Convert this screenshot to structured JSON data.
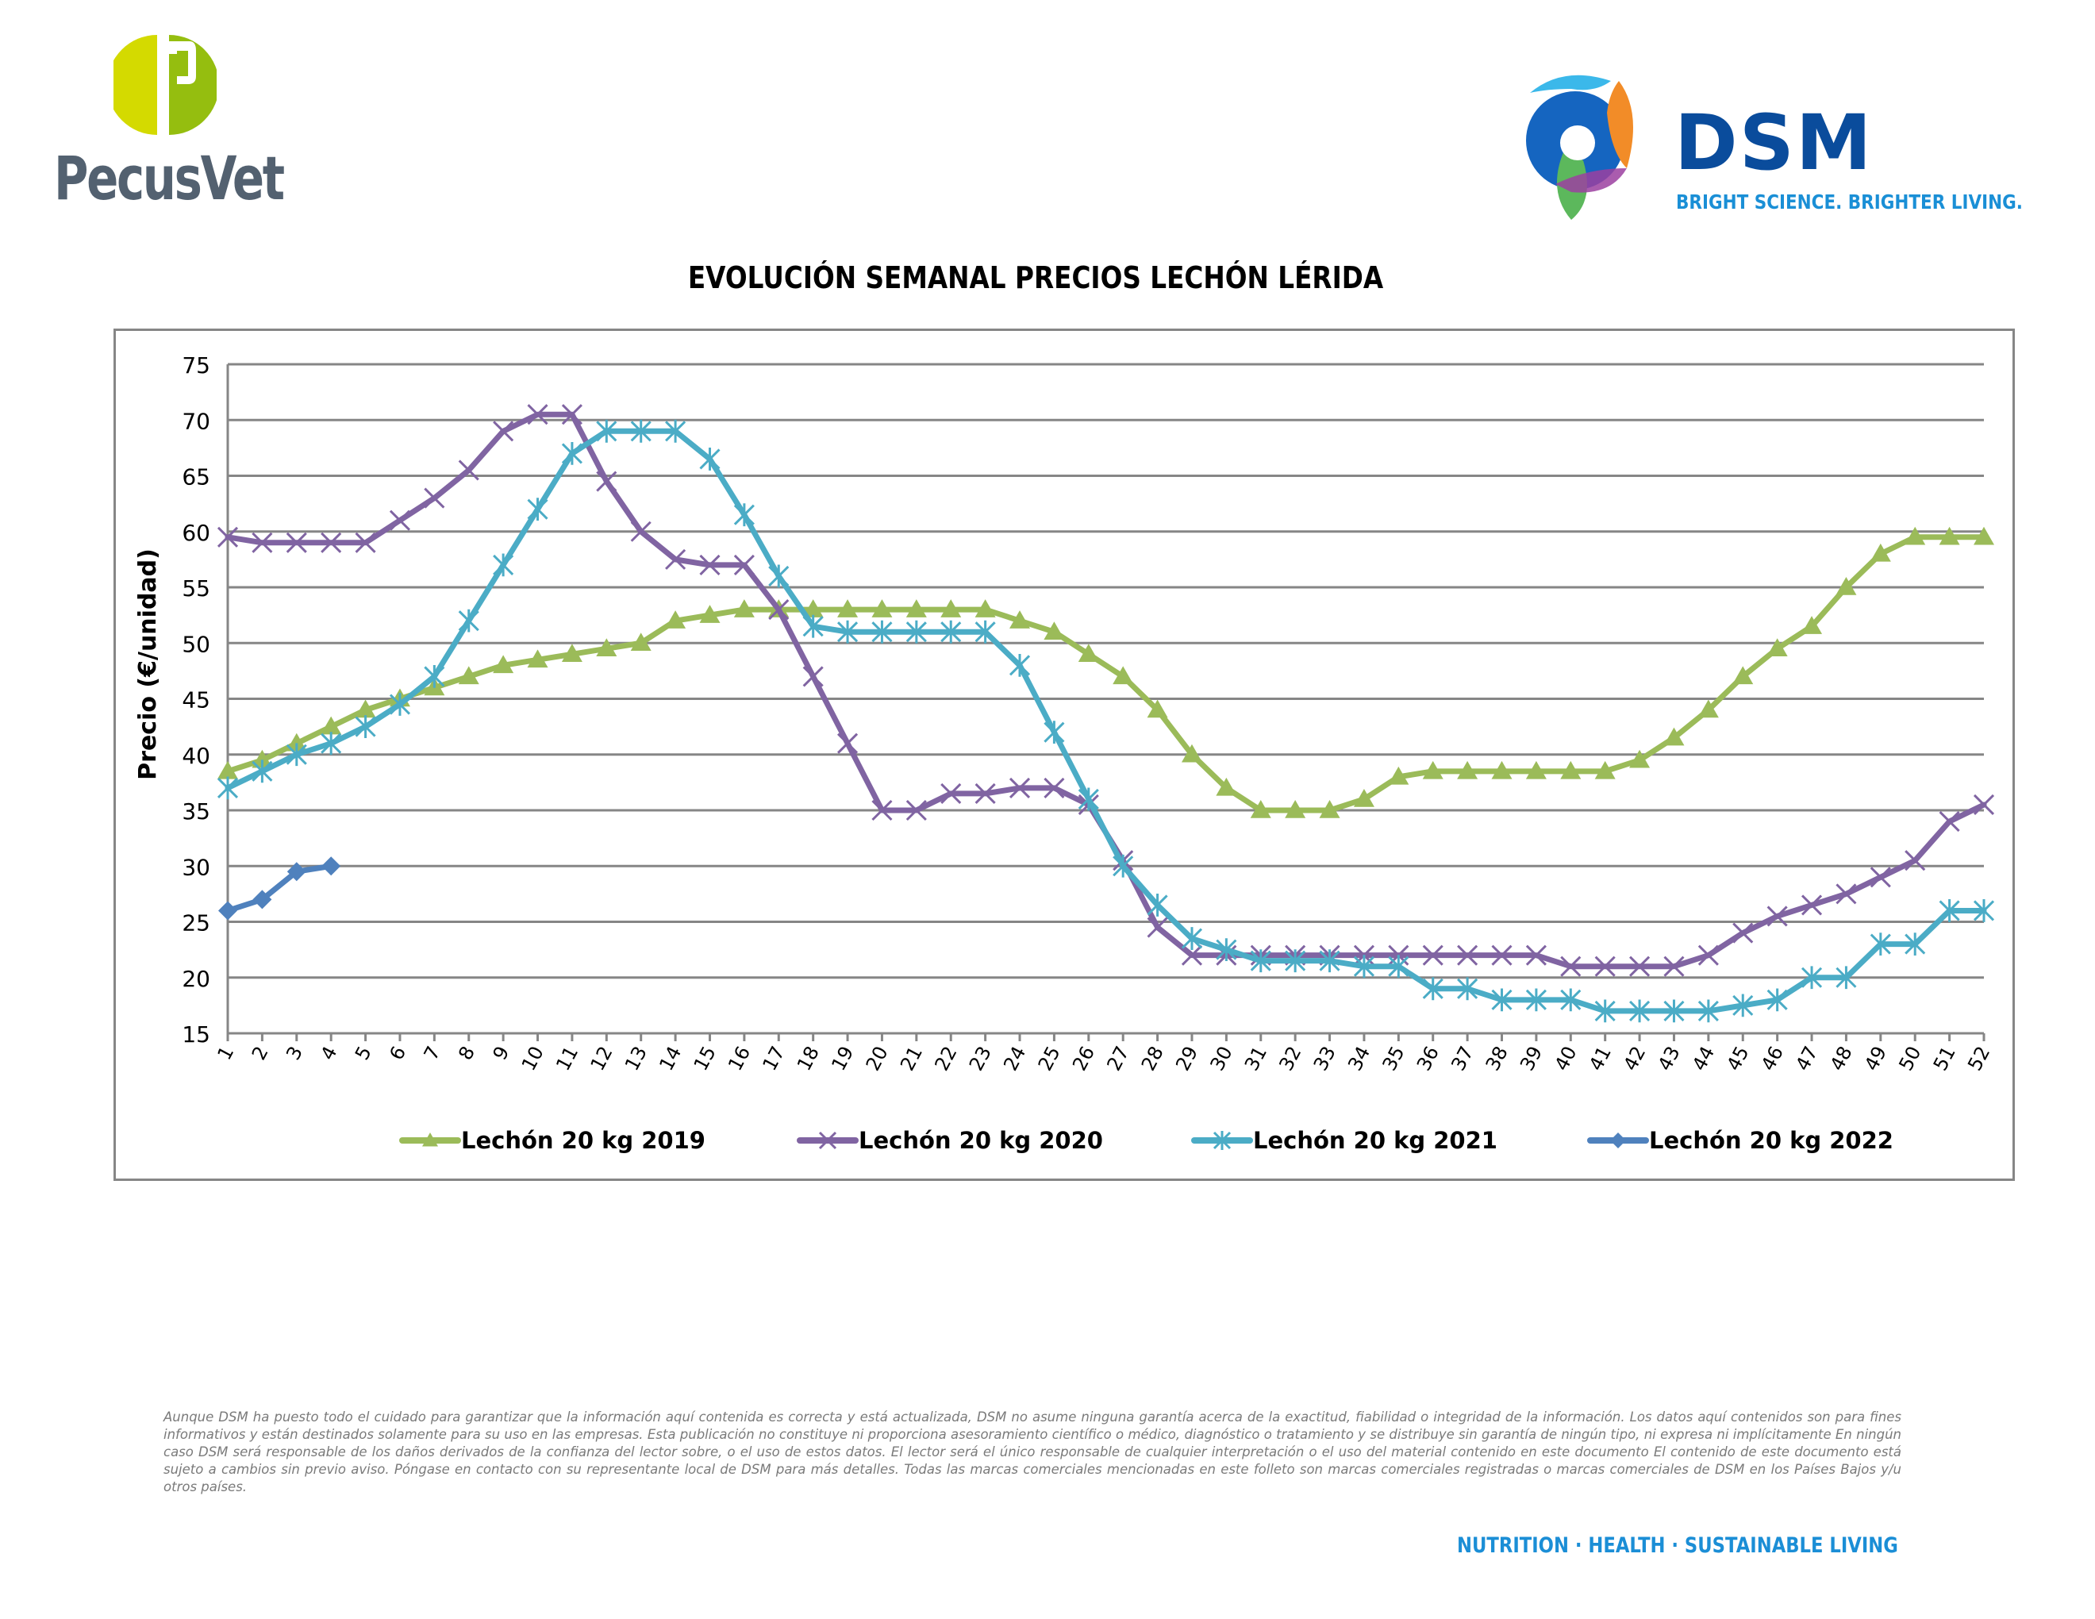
{
  "header": {
    "left_logo": {
      "name": "PecusVet",
      "colors": {
        "mark_light": "#D4DA00",
        "mark_dark": "#95BE0F",
        "text": "#536170"
      }
    },
    "right_logo": {
      "name": "DSM",
      "tagline": "BRIGHT SCIENCE. BRIGHTER LIVING.",
      "colors": {
        "text": "#0A4C9C",
        "tagline": "#1A8FD6"
      }
    }
  },
  "chart_data": {
    "type": "line",
    "title": "EVOLUCIÓN SEMANAL PRECIOS LECHÓN LÉRIDA",
    "xlabel": "",
    "ylabel": "Precio (€/unidad)",
    "ylim": [
      15,
      75
    ],
    "yticks": [
      15,
      20,
      25,
      30,
      35,
      40,
      45,
      50,
      55,
      60,
      65,
      70,
      75
    ],
    "grid": true,
    "legend_position": "bottom",
    "x": [
      1,
      2,
      3,
      4,
      5,
      6,
      7,
      8,
      9,
      10,
      11,
      12,
      13,
      14,
      15,
      16,
      17,
      18,
      19,
      20,
      21,
      22,
      23,
      24,
      25,
      26,
      27,
      28,
      29,
      30,
      31,
      32,
      33,
      34,
      35,
      36,
      37,
      38,
      39,
      40,
      41,
      42,
      43,
      44,
      45,
      46,
      47,
      48,
      49,
      50,
      51,
      52
    ],
    "series": [
      {
        "name": "Lechón 20 kg 2019",
        "color": "#9BBB59",
        "marker": "triangle",
        "values": [
          38.5,
          39.5,
          41,
          42.5,
          44,
          45,
          46,
          47,
          48,
          48.5,
          49,
          49.5,
          50,
          52,
          52.5,
          53,
          53,
          53,
          53,
          53,
          53,
          53,
          53,
          52,
          51,
          49,
          47,
          44,
          40,
          37,
          35,
          35,
          35,
          36,
          38,
          38.5,
          38.5,
          38.5,
          38.5,
          38.5,
          38.5,
          39.5,
          41.5,
          44,
          47,
          49.5,
          51.5,
          55,
          58,
          59.5,
          59.5,
          59.5
        ]
      },
      {
        "name": "Lechón 20 kg 2020",
        "color": "#8064A2",
        "marker": "x",
        "values": [
          59.5,
          59,
          59,
          59,
          59,
          61,
          63,
          65.5,
          69,
          70.5,
          70.5,
          64.5,
          60,
          57.5,
          57,
          57,
          53,
          47,
          41,
          35,
          35,
          36.5,
          36.5,
          37,
          37,
          35.5,
          30.5,
          24.5,
          22,
          22,
          22,
          22,
          22,
          22,
          22,
          22,
          22,
          22,
          22,
          21,
          21,
          21,
          21,
          22,
          24,
          25.5,
          26.5,
          27.5,
          29,
          30.5,
          34,
          35.5
        ]
      },
      {
        "name": "Lechón 20 kg 2021",
        "color": "#4BACC6",
        "marker": "star",
        "values": [
          37,
          38.5,
          40,
          41,
          42.5,
          44.5,
          47,
          52,
          57,
          62,
          67,
          69,
          69,
          69,
          66.5,
          61.5,
          56,
          51.5,
          51,
          51,
          51,
          51,
          51,
          48,
          42,
          36,
          30,
          26.5,
          23.5,
          22.5,
          21.5,
          21.5,
          21.5,
          21,
          21,
          19,
          19,
          18,
          18,
          18,
          17,
          17,
          17,
          17,
          17.5,
          18,
          20,
          20,
          23,
          23,
          26,
          26
        ]
      },
      {
        "name": "Lechón 20 kg 2022",
        "color": "#4F81BD",
        "marker": "diamond",
        "values": [
          26,
          27,
          29.5,
          30
        ]
      }
    ]
  },
  "footer": {
    "disclaimer": "Aunque DSM ha puesto todo el cuidado para garantizar que la información aquí contenida es correcta y está actualizada, DSM no asume ninguna garantía acerca de la exactitud, fiabilidad o integridad de la información. Los datos aquí contenidos son para fines informativos y están destinados solamente para su uso en las empresas. Esta publicación no constituye ni proporciona asesoramiento científico o médico, diagnóstico o tratamiento y se distribuye sin garantía de ningún tipo, ni expresa ni implícitamente En ningún caso DSM será responsable de los daños derivados de la confianza del lector sobre, o el uso de estos datos. El lector será el único responsable de cualquier interpretación o el uso del material contenido en este documento El contenido de este documento está sujeto a cambios sin previo aviso. Póngase en contacto con su representante local de DSM para más detalles. Todas las marcas comerciales mencionadas en este folleto son marcas comerciales registradas o marcas comerciales de DSM en los Países Bajos y/u otros países.",
    "tagline": "NUTRITION  ·  HEALTH  ·  SUSTAINABLE LIVING"
  }
}
